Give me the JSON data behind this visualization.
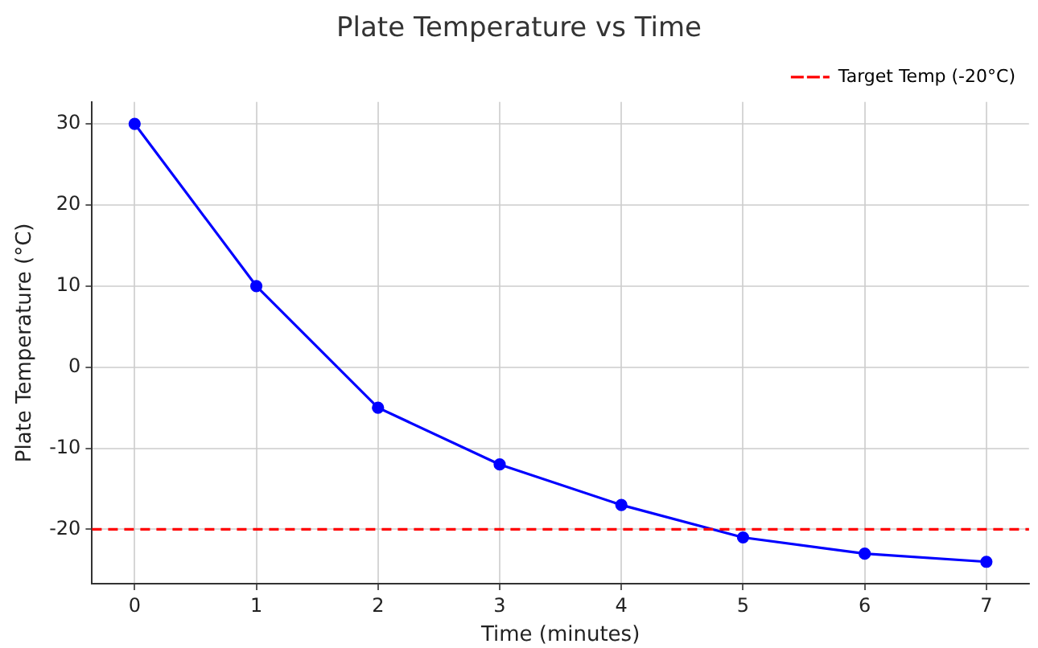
{
  "chart_data": {
    "type": "line",
    "title": "Plate Temperature vs Time",
    "xlabel": "Time (minutes)",
    "ylabel": "Plate Temperature (°C)",
    "x": [
      0,
      1,
      2,
      3,
      4,
      5,
      6,
      7
    ],
    "series": [
      {
        "color": "#0000ff",
        "values": [
          30,
          10,
          -5,
          -12,
          -17,
          -21,
          -23,
          -24
        ]
      }
    ],
    "xlim": [
      -0.35,
      7.35
    ],
    "xticks": [
      0,
      1,
      2,
      3,
      4,
      5,
      6,
      7
    ],
    "ylim": [
      -26.7,
      32.7
    ],
    "yticks": [
      -20,
      -10,
      0,
      10,
      20,
      30
    ],
    "ref_lines": [
      {
        "axis": "y",
        "value": -20,
        "label": "Target Temp (-20°C)",
        "color": "#ff0000",
        "line_style": "dashed"
      }
    ],
    "grid": true,
    "legend": "top right",
    "marker": "circle",
    "line_style": "solid"
  }
}
